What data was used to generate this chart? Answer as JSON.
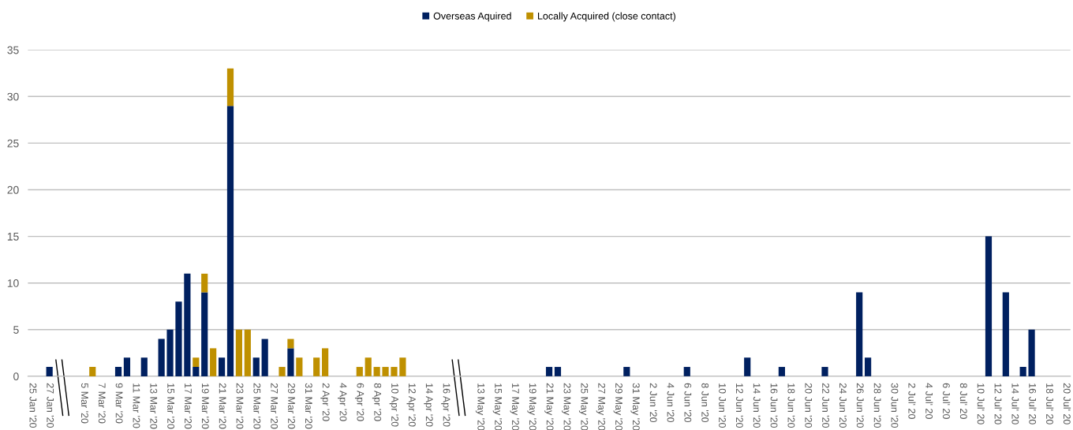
{
  "chart_data": {
    "type": "bar",
    "stacked": true,
    "categories": [
      "25 Jan '20",
      null,
      "27 Jan '20",
      null,
      null,
      null,
      "5 Mar '20",
      null,
      "7 Mar '20",
      null,
      "9 Mar '20",
      null,
      "11 Mar '20",
      null,
      "13 Mar '20",
      null,
      "15 Mar '20",
      null,
      "17 Mar '20",
      null,
      "19 Mar '20",
      null,
      "21 Mar '20",
      null,
      "23 Mar '20",
      null,
      "25 Mar '20",
      null,
      "27 Mar '20",
      null,
      "29 Mar '20",
      null,
      "31 Mar '20",
      null,
      "2 Apr '20",
      null,
      "4 Apr '20",
      null,
      "6 Apr '20",
      null,
      "8 Apr '20",
      null,
      "10 Apr '20",
      null,
      "12 Apr '20",
      null,
      "14 Apr '20",
      null,
      "16 Apr '20",
      null,
      null,
      null,
      "13 May '20",
      null,
      "15 May '20",
      null,
      "17 May '20",
      null,
      "19 May '20",
      null,
      "21 May '20",
      null,
      "23 May '20",
      null,
      "25 May '20",
      null,
      "27 May '20",
      null,
      "29 May '20",
      null,
      "31 May '20",
      null,
      "2 Jun '20",
      null,
      "4 Jun '20",
      null,
      "6 Jun '20",
      null,
      "8 Jun '20",
      null,
      "10 Jun '20",
      null,
      "12 Jun '20",
      null,
      "14 Jun '20",
      null,
      "16 Jun '20",
      null,
      "18 Jun '20",
      null,
      "20 Jun '20",
      null,
      "22 Jun '20",
      null,
      "24 Jun '20",
      null,
      "26 Jun '20",
      null,
      "28 Jun '20",
      null,
      "30 Jun '20",
      null,
      "2 Jul' 20",
      null,
      "4 Jul' 20",
      null,
      "6 Jul' 20",
      null,
      "8 Jul' 20",
      null,
      "10 Jul' 20",
      null,
      "12 Jul' 20",
      null,
      "14 Jul' 20",
      null,
      "16 Jul' 20",
      null,
      "18 Jul' 20",
      null,
      "20 Jul' 20"
    ],
    "series": [
      {
        "name": "Overseas Aquired",
        "color": "#002060",
        "values": [
          0,
          0,
          1,
          0,
          0,
          0,
          0,
          0,
          0,
          0,
          1,
          2,
          0,
          2,
          0,
          4,
          5,
          8,
          11,
          1,
          9,
          0,
          2,
          29,
          0,
          0,
          2,
          4,
          0,
          0,
          3,
          0,
          0,
          0,
          0,
          0,
          0,
          0,
          0,
          0,
          0,
          0,
          0,
          0,
          0,
          0,
          0,
          0,
          0,
          0,
          0,
          0,
          0,
          0,
          0,
          0,
          0,
          0,
          0,
          0,
          1,
          1,
          0,
          0,
          0,
          0,
          0,
          0,
          0,
          1,
          0,
          0,
          0,
          0,
          0,
          0,
          1,
          0,
          0,
          0,
          0,
          0,
          0,
          2,
          0,
          0,
          0,
          1,
          0,
          0,
          0,
          0,
          1,
          0,
          0,
          0,
          9,
          2,
          0,
          0,
          0,
          0,
          0,
          0,
          0,
          0,
          0,
          0,
          0,
          0,
          0,
          15,
          0,
          9,
          0,
          1,
          5,
          0,
          0,
          0,
          0
        ]
      },
      {
        "name": "Locally Acquired (close contact)",
        "color": "#bf9000",
        "values": [
          0,
          0,
          0,
          0,
          0,
          0,
          0,
          1,
          0,
          0,
          0,
          0,
          0,
          0,
          0,
          0,
          0,
          0,
          0,
          1,
          2,
          3,
          0,
          4,
          5,
          5,
          0,
          0,
          0,
          1,
          1,
          2,
          0,
          2,
          3,
          0,
          0,
          0,
          1,
          2,
          1,
          1,
          1,
          2,
          0,
          0,
          0,
          0,
          0,
          0,
          0,
          0,
          0,
          0,
          0,
          0,
          0,
          0,
          0,
          0,
          0,
          0,
          0,
          0,
          0,
          0,
          0,
          0,
          0,
          0,
          0,
          0,
          0,
          0,
          0,
          0,
          0,
          0,
          0,
          0,
          0,
          0,
          0,
          0,
          0,
          0,
          0,
          0,
          0,
          0,
          0,
          0,
          0,
          0,
          0,
          0,
          0,
          0,
          0,
          0,
          0,
          0,
          0,
          0,
          0,
          0,
          0,
          0,
          0,
          0,
          0,
          0,
          0,
          0,
          0,
          0,
          0,
          0,
          0,
          0,
          0
        ]
      }
    ],
    "ylim": [
      0,
      35
    ],
    "yticks": [
      0,
      5,
      10,
      15,
      20,
      25,
      30,
      35
    ],
    "grid": "y",
    "legend": "top"
  }
}
